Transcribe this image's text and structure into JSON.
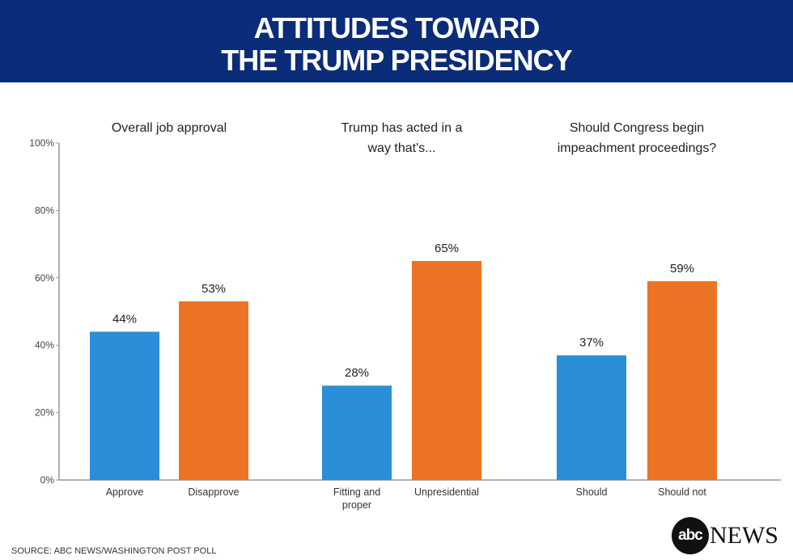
{
  "header": {
    "title_line1": "ATTITUDES TOWARD",
    "title_line2": "THE TRUMP PRESIDENCY"
  },
  "chart_data": {
    "type": "bar",
    "title": "Attitudes Toward the Trump Presidency",
    "ylim": [
      0,
      100
    ],
    "yticks": [
      0,
      20,
      40,
      60,
      80,
      100
    ],
    "ytick_labels": [
      "0%",
      "20%",
      "40%",
      "60%",
      "80%",
      "100%"
    ],
    "colors": {
      "blue": "#2a8fd8",
      "orange": "#ec7323",
      "header": "#0b2c78"
    },
    "groups": [
      {
        "title_lines": [
          "Overall job approval"
        ],
        "bars": [
          {
            "label_lines": [
              "Approve"
            ],
            "value": 44,
            "data_label": "44%",
            "color": "blue"
          },
          {
            "label_lines": [
              "Disapprove"
            ],
            "value": 53,
            "data_label": "53%",
            "color": "orange"
          }
        ]
      },
      {
        "title_lines": [
          "Trump has acted in a",
          "way that's..."
        ],
        "bars": [
          {
            "label_lines": [
              "Fitting and",
              "proper"
            ],
            "value": 28,
            "data_label": "28%",
            "color": "blue"
          },
          {
            "label_lines": [
              "Unpresidential"
            ],
            "value": 65,
            "data_label": "65%",
            "color": "orange"
          }
        ]
      },
      {
        "title_lines": [
          "Should Congress begin",
          "impeachment proceedings?"
        ],
        "bars": [
          {
            "label_lines": [
              "Should"
            ],
            "value": 37,
            "data_label": "37%",
            "color": "blue"
          },
          {
            "label_lines": [
              "Should not"
            ],
            "value": 59,
            "data_label": "59%",
            "color": "orange"
          }
        ]
      }
    ]
  },
  "footer": {
    "source": "SOURCE: ABC NEWS/WASHINGTON POST POLL",
    "logo_abc": "abc",
    "logo_news": "NEWS"
  }
}
